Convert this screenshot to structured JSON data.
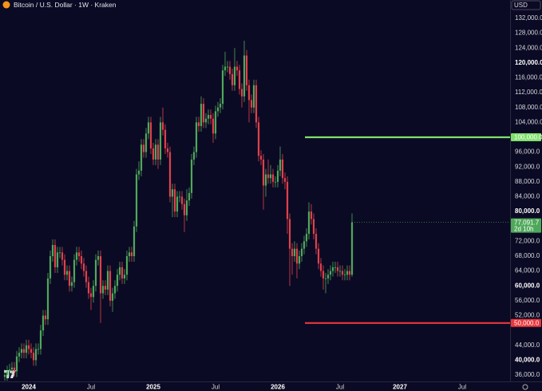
{
  "chart_data": {
    "type": "candlestick",
    "title": "Bitcoin / U.S. Dollar · 1W · Kraken",
    "currency": "USD",
    "up_color": "#4fa85a",
    "down_color": "#e0414b",
    "xlim": [
      -2,
      211
    ],
    "xticks": [
      {
        "value": 10,
        "label": "2024"
      },
      {
        "value": 36,
        "label": "Jul"
      },
      {
        "value": 62,
        "label": "2025"
      },
      {
        "value": 88,
        "label": "Jul"
      },
      {
        "value": 114,
        "label": "2026"
      },
      {
        "value": 140,
        "label": "Jul"
      },
      {
        "value": 165,
        "label": "2027"
      },
      {
        "value": 191,
        "label": "Jul"
      }
    ],
    "ylim": [
      34280,
      136940
    ],
    "yticks": [
      {
        "value": 132000,
        "label": "132,000.0"
      },
      {
        "value": 128000,
        "label": "128,000.0"
      },
      {
        "value": 124000,
        "label": "124,000.0"
      },
      {
        "value": 120000,
        "label": "120,000.0"
      },
      {
        "value": 116000,
        "label": "116,000.0"
      },
      {
        "value": 112000,
        "label": "112,000.0"
      },
      {
        "value": 108000,
        "label": "108,000.0"
      },
      {
        "value": 104000,
        "label": "104,000.0"
      },
      {
        "value": 96000,
        "label": "96,000.0"
      },
      {
        "value": 92000,
        "label": "92,000.0"
      },
      {
        "value": 88000,
        "label": "88,000.0"
      },
      {
        "value": 84000,
        "label": "84,000.0"
      },
      {
        "value": 80000,
        "label": "80,000.0"
      },
      {
        "value": 72000,
        "label": "72,000.0"
      },
      {
        "value": 68000,
        "label": "68,000.0"
      },
      {
        "value": 64000,
        "label": "64,000.0"
      },
      {
        "value": 60000,
        "label": "60,000.0"
      },
      {
        "value": 56000,
        "label": "56,000.0"
      },
      {
        "value": 52000,
        "label": "52,000.0"
      },
      {
        "value": 44000,
        "label": "44,000.0"
      },
      {
        "value": 40000,
        "label": "40,000.0"
      },
      {
        "value": 36000,
        "label": "36,000.0"
      }
    ],
    "hlines": [
      {
        "value": 100000,
        "label": "100,000.0",
        "color": "#7ee06a"
      },
      {
        "value": 50000,
        "label": "50,000.0",
        "color": "#e8373d"
      }
    ],
    "last_price_label": "77,091.7",
    "countdown": "2d 10h",
    "open": [
      35500,
      36000,
      37000,
      37500,
      38000,
      37000,
      41000,
      42000,
      43000,
      42000,
      44000,
      43000,
      42000,
      40000,
      43000,
      43000,
      48000,
      52000,
      51000,
      62000,
      68000,
      71000,
      65000,
      69000,
      69000,
      67000,
      63000,
      64000,
      60000,
      61000,
      67000,
      69000,
      68000,
      66000,
      64000,
      61000,
      58000,
      57000,
      60000,
      67000,
      68000,
      58000,
      60000,
      59000,
      64000,
      56000,
      58000,
      60000,
      63000,
      65000,
      62000,
      63000,
      68000,
      69000,
      68000,
      76000,
      90000,
      91000,
      98000,
      96000,
      101000,
      104000,
      97000,
      94000,
      98000,
      94000,
      104000,
      102000,
      97000,
      96000,
      84000,
      86000,
      80000,
      84000,
      84000,
      82000,
      79000,
      83000,
      85000,
      94000,
      96000,
      104000,
      103000,
      109000,
      104000,
      105000,
      106000,
      105000,
      101000,
      107000,
      108000,
      109000,
      118000,
      119000,
      119000,
      117000,
      114000,
      119000,
      118000,
      113000,
      111000,
      122000,
      114000,
      110000,
      108000,
      114000,
      104000,
      95000,
      94000,
      87000,
      90000,
      89000,
      90000,
      88000,
      88000,
      91000,
      94000,
      89000,
      88000,
      78000,
      70000,
      68000,
      70000,
      66000,
      68000,
      70000,
      72000,
      74000,
      80000,
      78000,
      74000,
      70000,
      66000,
      64000,
      62000,
      62000,
      63000,
      64000,
      65000,
      65000,
      64000,
      64000,
      63000,
      63000,
      64000,
      63000
    ],
    "high": [
      37500,
      38500,
      39000,
      39500,
      39500,
      42500,
      43500,
      44500,
      44500,
      45500,
      45500,
      44500,
      43500,
      44500,
      44500,
      49500,
      53500,
      53500,
      63500,
      69500,
      72500,
      72500,
      70500,
      70500,
      70500,
      68500,
      65500,
      65500,
      62500,
      68500,
      70500,
      70500,
      69500,
      67500,
      65500,
      62500,
      59500,
      61500,
      68500,
      69500,
      69500,
      61500,
      61500,
      65500,
      65500,
      59500,
      61500,
      64500,
      66500,
      66500,
      64500,
      69500,
      70500,
      70500,
      77500,
      91500,
      93500,
      99500,
      99500,
      102500,
      105500,
      105500,
      98500,
      99500,
      99500,
      105500,
      108000,
      103500,
      98500,
      97500,
      87500,
      87500,
      85500,
      85500,
      85500,
      83500,
      86000,
      86500,
      95500,
      97500,
      105500,
      105500,
      111000,
      110500,
      106500,
      107500,
      107500,
      106500,
      108500,
      109500,
      110500,
      119500,
      123000,
      120500,
      120500,
      118500,
      124000,
      120500,
      119500,
      114500,
      126000,
      123500,
      115500,
      111500,
      115500,
      115500,
      105500,
      96500,
      95500,
      91500,
      94000,
      92500,
      91500,
      89500,
      92500,
      97500,
      95500,
      90500,
      89500,
      79500,
      71500,
      72000,
      71500,
      69500,
      71500,
      73500,
      75500,
      82500,
      82000,
      79500,
      75500,
      71500,
      67500,
      65500,
      63500,
      64500,
      65500,
      66500,
      66500,
      66500,
      65500,
      65500,
      64500,
      65500,
      65500,
      79500
    ],
    "low": [
      34500,
      34500,
      35500,
      36000,
      35500,
      35500,
      39500,
      40500,
      40500,
      40500,
      41500,
      40500,
      38500,
      38500,
      41500,
      41500,
      46500,
      49500,
      49500,
      60500,
      66500,
      63500,
      63500,
      67500,
      65500,
      61500,
      61500,
      58500,
      58500,
      59500,
      65500,
      66500,
      64500,
      62500,
      59500,
      56500,
      53500,
      55500,
      58500,
      65500,
      50000,
      56500,
      57500,
      57500,
      54500,
      53000,
      56500,
      58500,
      61500,
      60500,
      60500,
      61500,
      66500,
      66500,
      66500,
      74500,
      88500,
      89500,
      94500,
      94500,
      99500,
      95500,
      92500,
      92500,
      91500,
      92500,
      100500,
      95500,
      94500,
      82500,
      78500,
      78500,
      78500,
      82500,
      80500,
      74500,
      77500,
      81500,
      83500,
      92500,
      94500,
      101500,
      101500,
      102500,
      102500,
      103500,
      103500,
      98500,
      99500,
      105500,
      106500,
      107500,
      116500,
      117500,
      115500,
      112500,
      112500,
      116500,
      111500,
      108000,
      109500,
      112500,
      104000,
      106500,
      106500,
      102500,
      93500,
      92500,
      80500,
      84000,
      87500,
      87500,
      86500,
      86500,
      86500,
      89500,
      87500,
      86000,
      74000,
      60000,
      63000,
      66500,
      62000,
      64500,
      66500,
      68500,
      70500,
      72500,
      76500,
      72500,
      68500,
      64500,
      62500,
      59000,
      58000,
      60500,
      61500,
      62500,
      63500,
      62500,
      62500,
      61500,
      61500,
      61500,
      61500,
      62500
    ],
    "close": [
      36000,
      37000,
      37500,
      38000,
      37000,
      41000,
      42000,
      43000,
      42000,
      44000,
      43000,
      42000,
      40000,
      43000,
      43000,
      48000,
      52000,
      51000,
      62000,
      68000,
      71000,
      65000,
      69000,
      69000,
      67000,
      63000,
      64000,
      60000,
      61000,
      67000,
      69000,
      68000,
      66000,
      64000,
      61000,
      58000,
      57000,
      60000,
      67000,
      68000,
      58000,
      60000,
      59000,
      64000,
      56000,
      58000,
      60000,
      63000,
      65000,
      62000,
      63000,
      68000,
      69000,
      68000,
      76000,
      90000,
      91000,
      98000,
      96000,
      101000,
      104000,
      97000,
      94000,
      98000,
      94000,
      104000,
      102000,
      97000,
      96000,
      84000,
      86000,
      80000,
      84000,
      84000,
      82000,
      79000,
      83000,
      85000,
      94000,
      96000,
      104000,
      103000,
      109000,
      104000,
      105000,
      106000,
      105000,
      101000,
      107000,
      108000,
      109000,
      118000,
      119000,
      119000,
      117000,
      114000,
      119000,
      118000,
      113000,
      111000,
      122000,
      114000,
      110000,
      108000,
      114000,
      104000,
      95000,
      94000,
      87000,
      90000,
      89000,
      90000,
      88000,
      88000,
      91000,
      94000,
      89000,
      88000,
      78000,
      70000,
      68000,
      70000,
      66000,
      68000,
      70000,
      72000,
      74000,
      80000,
      78000,
      74000,
      70000,
      66000,
      64000,
      62000,
      62000,
      63000,
      64000,
      65000,
      65000,
      64000,
      64000,
      63000,
      63000,
      64000,
      63000,
      77091.7
    ]
  }
}
